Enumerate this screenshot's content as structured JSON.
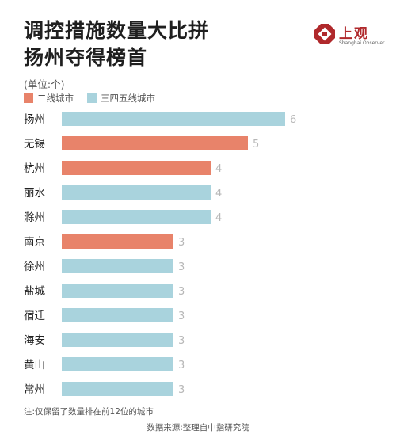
{
  "header": {
    "title_line1": "调控措施数量大比拼",
    "title_line2": "扬州夺得榜首",
    "unit": "(单位:个)"
  },
  "logo": {
    "name": "上观",
    "subtitle": "Shanghai Observer",
    "color": "#b0292c"
  },
  "legend": [
    {
      "label": "二线城市",
      "color": "#e8836a"
    },
    {
      "label": "三四五线城市",
      "color": "#a9d3dd"
    }
  ],
  "chart_data": {
    "type": "bar",
    "orientation": "horizontal",
    "title": "调控措施数量大比拼 扬州夺得榜首",
    "unit": "(单位:个)",
    "categories": [
      "扬州",
      "无锡",
      "杭州",
      "丽水",
      "滁州",
      "南京",
      "徐州",
      "盐城",
      "宿迁",
      "海安",
      "黄山",
      "常州"
    ],
    "values": [
      6,
      5,
      4,
      4,
      4,
      3,
      3,
      3,
      3,
      3,
      3,
      3
    ],
    "groups": [
      "三四五线城市",
      "二线城市",
      "二线城市",
      "三四五线城市",
      "三四五线城市",
      "二线城市",
      "三四五线城市",
      "三四五线城市",
      "三四五线城市",
      "三四五线城市",
      "三四五线城市",
      "三四五线城市"
    ],
    "xlim": [
      0,
      6
    ],
    "grid": false,
    "legend_position": "top-left"
  },
  "footer": {
    "note": "注:仅保留了数量排在前12位的城市",
    "source": "数据来源:整理自中指研究院"
  }
}
